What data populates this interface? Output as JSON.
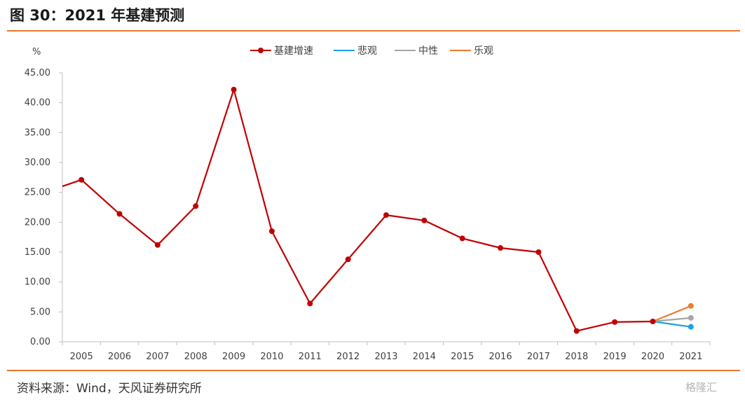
{
  "header": {
    "title": "图 30：2021 年基建预测"
  },
  "footer": {
    "source": "资料来源：Wind，天风证券研究所",
    "watermark": "格隆汇"
  },
  "chart_data": {
    "type": "line",
    "ylabel": "%",
    "ylim": [
      0,
      45
    ],
    "yticks": [
      "0.00",
      "5.00",
      "10.00",
      "15.00",
      "20.00",
      "25.00",
      "30.00",
      "35.00",
      "40.00",
      "45.00"
    ],
    "categories": [
      "2005",
      "2006",
      "2007",
      "2008",
      "2009",
      "2010",
      "2011",
      "2012",
      "2013",
      "2014",
      "2015",
      "2016",
      "2017",
      "2018",
      "2019",
      "2020",
      "2021"
    ],
    "legend_position": "top-center",
    "series": [
      {
        "name": "基建增速",
        "color": "#c00000",
        "marker": true,
        "start_value": 26.0,
        "values": [
          27.1,
          21.4,
          16.2,
          22.7,
          42.2,
          18.5,
          6.4,
          13.8,
          21.2,
          20.3,
          17.3,
          15.7,
          15.0,
          1.8,
          3.3,
          3.4,
          null
        ]
      },
      {
        "name": "悲观",
        "color": "#1aa3dc",
        "marker": false,
        "values": [
          null,
          null,
          null,
          null,
          null,
          null,
          null,
          null,
          null,
          null,
          null,
          null,
          null,
          null,
          null,
          3.4,
          2.5
        ]
      },
      {
        "name": "中性",
        "color": "#a6a6a6",
        "marker": false,
        "values": [
          null,
          null,
          null,
          null,
          null,
          null,
          null,
          null,
          null,
          null,
          null,
          null,
          null,
          null,
          null,
          3.4,
          4.0
        ]
      },
      {
        "name": "乐观",
        "color": "#ed7d31",
        "marker": false,
        "values": [
          null,
          null,
          null,
          null,
          null,
          null,
          null,
          null,
          null,
          null,
          null,
          null,
          null,
          null,
          null,
          3.4,
          6.0
        ]
      }
    ]
  }
}
